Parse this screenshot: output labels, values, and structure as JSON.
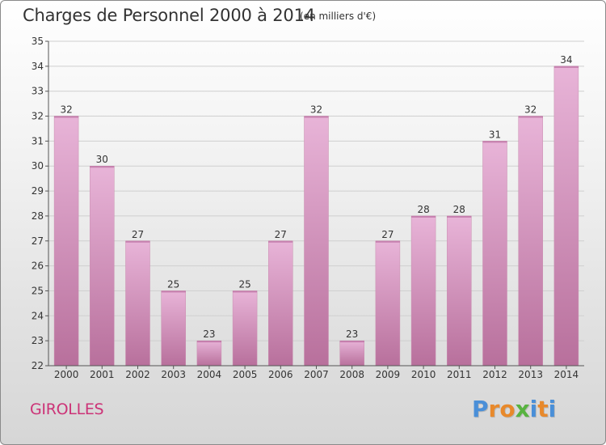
{
  "header": {
    "title": "Charges de Personnel 2000 à 2014",
    "subtitle": "(en milliers d'€)"
  },
  "footer": {
    "commune": "GIROLLES",
    "logo_letters": [
      "P",
      "r",
      "o",
      "x",
      "i",
      "t",
      "i"
    ],
    "logo_colors": [
      "#4a8fd8",
      "#e8892b",
      "#e8892b",
      "#58b340",
      "#4a8fd8",
      "#e8892b",
      "#4a8fd8"
    ]
  },
  "colors": {
    "bar_light": "#e8b4d8",
    "bar_dark": "#b8709c",
    "axis": "#555555",
    "grid": "#cfcfcf",
    "commune": "#cc3377"
  },
  "chart_data": {
    "type": "bar",
    "title": "Charges de Personnel 2000 à 2014",
    "subtitle": "(en milliers d'€)",
    "categories": [
      "2000",
      "2001",
      "2002",
      "2003",
      "2004",
      "2005",
      "2006",
      "2007",
      "2008",
      "2009",
      "2010",
      "2011",
      "2012",
      "2013",
      "2014"
    ],
    "values": [
      32,
      30,
      27,
      25,
      23,
      25,
      27,
      32,
      23,
      27,
      28,
      28,
      31,
      32,
      34
    ],
    "ylim": [
      22,
      35
    ],
    "yticks": [
      22,
      23,
      24,
      25,
      26,
      27,
      28,
      29,
      30,
      31,
      32,
      33,
      34,
      35
    ],
    "grid": true,
    "data_labels": true
  }
}
